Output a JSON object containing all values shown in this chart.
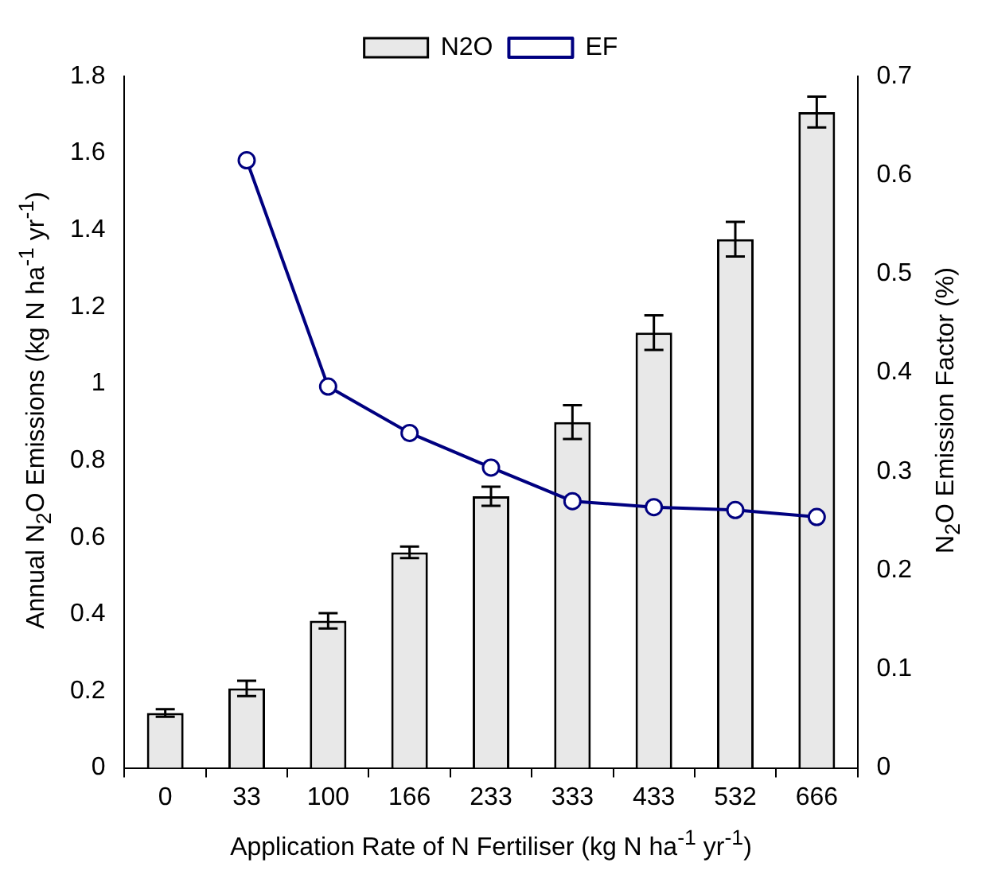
{
  "chart_data": {
    "type": "bar",
    "xlabel": "Application Rate of N Fertiliser (kg N ha$^{-1}$ yr$^{-1}$)",
    "ylabel": "Annual N$_{2}$O Emissions (kg N ha$^{-1}$ yr$^{-1}$)",
    "y2label": "N$_{2}$O Emission Factor (%)",
    "categories": [
      "0",
      "33",
      "100",
      "166",
      "233",
      "333",
      "433",
      "532",
      "666"
    ],
    "series": [
      {
        "name": "N2O",
        "color": "#e8e8e8",
        "values": [
          0.143,
          0.207,
          0.383,
          0.561,
          0.707,
          0.9,
          1.133,
          1.376,
          1.707
        ],
        "errors": [
          0.01,
          0.02,
          0.02,
          0.015,
          0.025,
          0.044,
          0.045,
          0.045,
          0.04
        ]
      },
      {
        "name": "EF",
        "type": "line",
        "axis": "y2",
        "color": "#000080",
        "marker": "circle",
        "values": [
          null,
          0.615,
          0.386,
          0.339,
          0.304,
          0.27,
          0.264,
          0.261,
          0.254
        ]
      }
    ],
    "ylim": [
      0,
      1.8
    ],
    "yticks": [
      0,
      0.2,
      0.4,
      0.6,
      0.8,
      1,
      1.2,
      1.4,
      1.6,
      1.8
    ],
    "y2lim": [
      0,
      0.7
    ],
    "y2ticks": [
      0,
      0.1,
      0.2,
      0.3,
      0.4,
      0.5,
      0.6,
      0.7
    ],
    "legend": "top",
    "grid": false
  }
}
